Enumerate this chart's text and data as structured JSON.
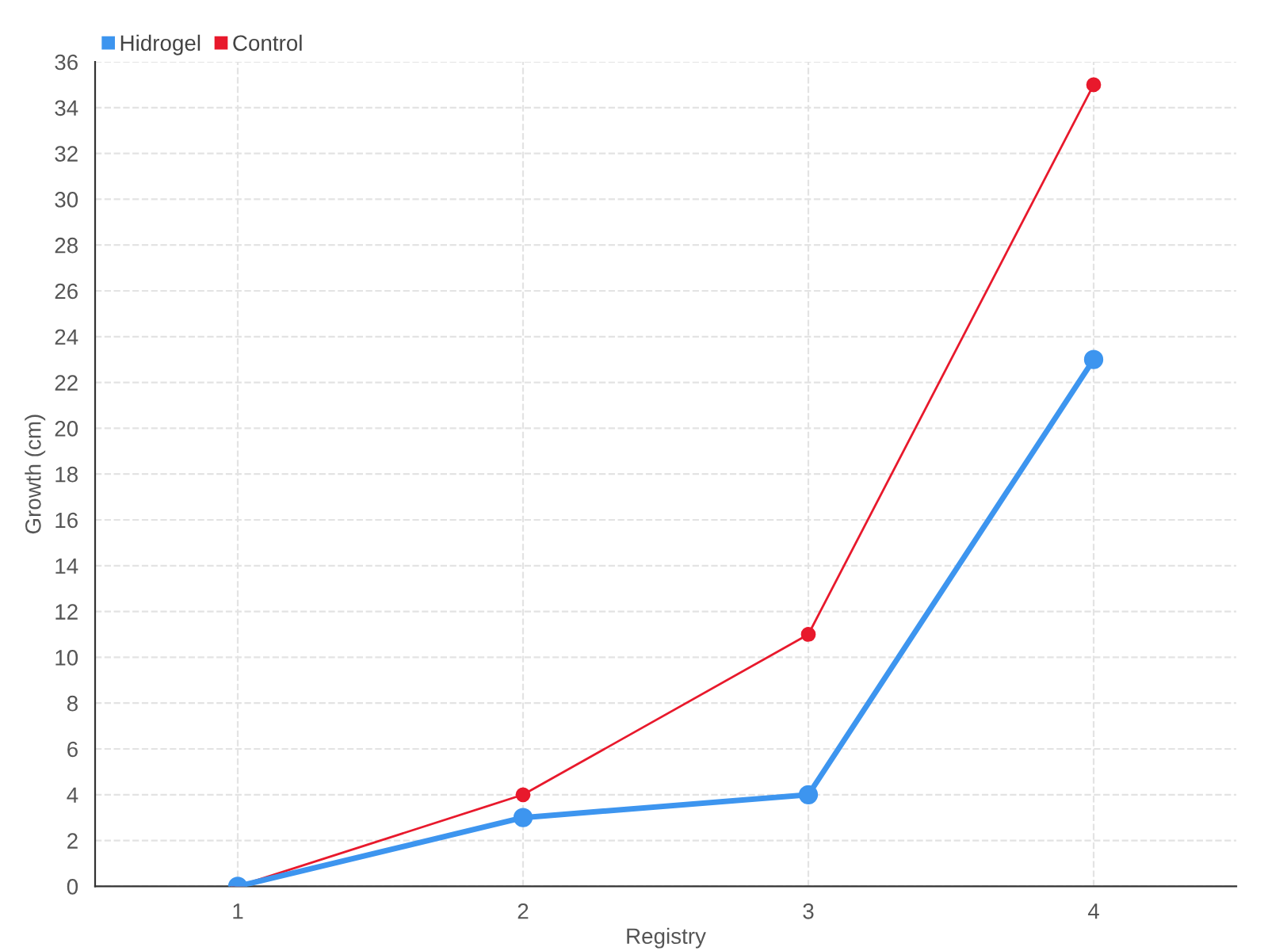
{
  "chart_data": {
    "type": "line",
    "xlabel": "Registry",
    "ylabel": "Growth (cm)",
    "categories": [
      "1",
      "2",
      "3",
      "4"
    ],
    "series": [
      {
        "name": "Hidrogel",
        "color": "#3d95ef",
        "values": [
          0,
          3,
          4,
          23
        ]
      },
      {
        "name": "Control",
        "color": "#e8192c",
        "values": [
          0,
          4,
          11,
          35
        ]
      }
    ],
    "ylim": [
      0,
      36
    ],
    "yticks": [
      0,
      2,
      4,
      6,
      8,
      10,
      12,
      14,
      16,
      18,
      20,
      22,
      24,
      26,
      28,
      30,
      32,
      34,
      36
    ],
    "grid": true,
    "legend": "top left",
    "marker": "circle",
    "line_style": "solid"
  }
}
